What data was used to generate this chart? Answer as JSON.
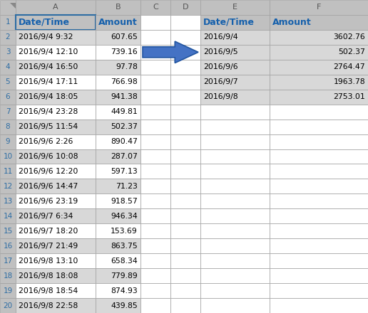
{
  "left_rows": [
    [
      "2016/9/4 9:32",
      "607.65"
    ],
    [
      "2016/9/4 12:10",
      "739.16"
    ],
    [
      "2016/9/4 16:50",
      "97.78"
    ],
    [
      "2016/9/4 17:11",
      "766.98"
    ],
    [
      "2016/9/4 18:05",
      "941.38"
    ],
    [
      "2016/9/4 23:28",
      "449.81"
    ],
    [
      "2016/9/5 11:54",
      "502.37"
    ],
    [
      "2016/9/6 2:26",
      "890.47"
    ],
    [
      "2016/9/6 10:08",
      "287.07"
    ],
    [
      "2016/9/6 12:20",
      "597.13"
    ],
    [
      "2016/9/6 14:47",
      "71.23"
    ],
    [
      "2016/9/6 23:19",
      "918.57"
    ],
    [
      "2016/9/7 6:34",
      "946.34"
    ],
    [
      "2016/9/7 18:20",
      "153.69"
    ],
    [
      "2016/9/7 21:49",
      "863.75"
    ],
    [
      "2016/9/8 13:10",
      "658.34"
    ],
    [
      "2016/9/8 18:08",
      "779.89"
    ],
    [
      "2016/9/8 18:54",
      "874.93"
    ],
    [
      "2016/9/8 22:58",
      "439.85"
    ]
  ],
  "right_rows": [
    [
      "2016/9/4",
      "3602.76"
    ],
    [
      "2016/9/5",
      "502.37"
    ],
    [
      "2016/9/6",
      "2764.47"
    ],
    [
      "2016/9/7",
      "1963.78"
    ],
    [
      "2016/9/8",
      "2753.01"
    ]
  ],
  "header_bg": "#c0c0c0",
  "row_even_bg": "#d8d8d8",
  "row_odd_bg": "#ffffff",
  "header_text_color": "#1560ac",
  "cell_text_color": "#000000",
  "border_color": "#a0a0a0",
  "border_dark": "#2e6da4",
  "arrow_color": "#4472c4",
  "arrow_edge": "#2255a0",
  "fig_bg": "#ffffff",
  "rn_color": "#2e6da4",
  "col_label_color": "#555555"
}
